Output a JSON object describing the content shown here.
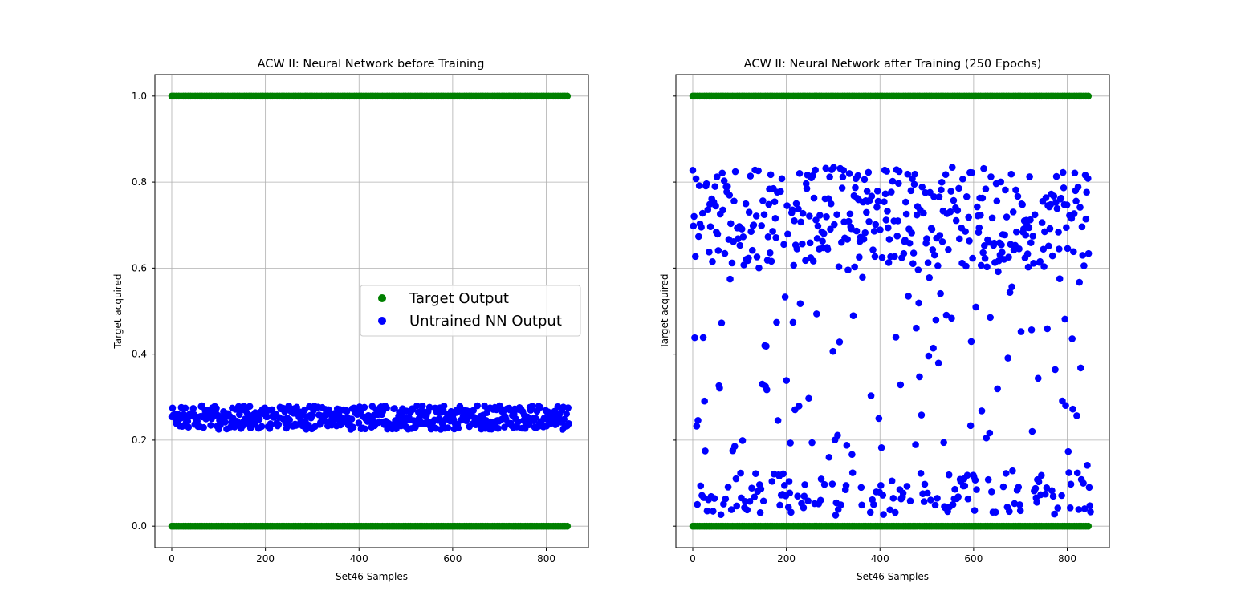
{
  "figure": {
    "colors": {
      "target": "#008000",
      "nn": "#0000ff",
      "grid": "#b0b0b0"
    }
  },
  "chart_data": [
    {
      "type": "scatter",
      "title": "ACW II: Neural Network before Training",
      "xlabel": "Set46 Samples",
      "ylabel": "Target acquired",
      "xlim": [
        -36,
        890
      ],
      "ylim": [
        -0.05,
        1.05
      ],
      "xticks": [
        "0",
        "200",
        "400",
        "600",
        "800"
      ],
      "yticks": [
        "0.0",
        "0.2",
        "0.4",
        "0.6",
        "0.8",
        "1.0"
      ],
      "grid": true,
      "legend": {
        "placement": "center-right",
        "entries": [
          "Target Output",
          "Untrained NN Output"
        ]
      },
      "series": [
        {
          "name": "Target Output",
          "color": "#008000",
          "description_values": {
            "x_range": [
              0,
              849
            ],
            "y_levels": [
              0.0,
              1.0
            ]
          }
        },
        {
          "name": "Untrained NN Output",
          "color": "#0000ff",
          "description_values": {
            "x_range": [
              0,
              849
            ],
            "y_range": [
              0.225,
              0.28
            ],
            "y_mean": 0.25
          }
        }
      ]
    },
    {
      "type": "scatter",
      "title": "ACW II: Neural Network after Training (250 Epochs)",
      "xlabel": "Set46 Samples",
      "ylabel": "Target acquired",
      "xlim": [
        -36,
        890
      ],
      "ylim": [
        -0.05,
        1.05
      ],
      "xticks": [
        "0",
        "200",
        "400",
        "600",
        "800"
      ],
      "yticks": [
        "0.0",
        "0.2",
        "0.4",
        "0.6",
        "0.8",
        "1.0"
      ],
      "grid": true,
      "series": [
        {
          "color": "#008000",
          "description_values": {
            "x_range": [
              0,
              849
            ],
            "y_levels": [
              0.0,
              1.0
            ]
          }
        },
        {
          "color": "#0000ff",
          "description_values": {
            "x_range": [
              0,
              849
            ],
            "cluster_high": [
              0.6,
              0.84
            ],
            "cluster_low": [
              0.02,
              0.1
            ],
            "spread": [
              0.1,
              0.6
            ]
          }
        }
      ]
    }
  ]
}
